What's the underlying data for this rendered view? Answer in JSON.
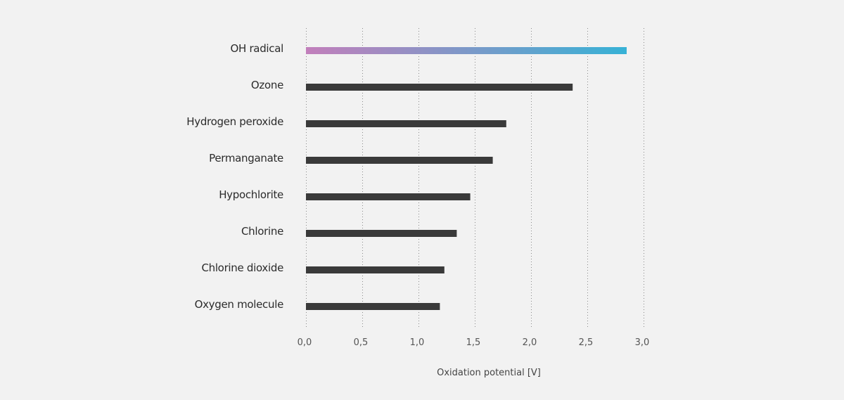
{
  "chart_data": {
    "type": "bar",
    "orientation": "horizontal",
    "categories": [
      "OH radical",
      "Ozone",
      "Hydrogen peroxide",
      "Permanganate",
      "Hypochlorite",
      "Chlorine",
      "Chlorine dioxide",
      "Oxygen molecule"
    ],
    "values": [
      2.85,
      2.37,
      1.78,
      1.66,
      1.46,
      1.34,
      1.23,
      1.19
    ],
    "xlabel": "Oxidation potential  [V]",
    "xlim": [
      0,
      3
    ],
    "xticks": [
      "0,0",
      "0,5",
      "1,0",
      "1,5",
      "2,0",
      "2,5",
      "3,0"
    ],
    "grid": "vertical dotted",
    "colors": {
      "bar": "#3a3a3a",
      "highlight_start": "#c27fbb",
      "highlight_end": "#37b2d6",
      "background": "#f2f2f2"
    }
  }
}
